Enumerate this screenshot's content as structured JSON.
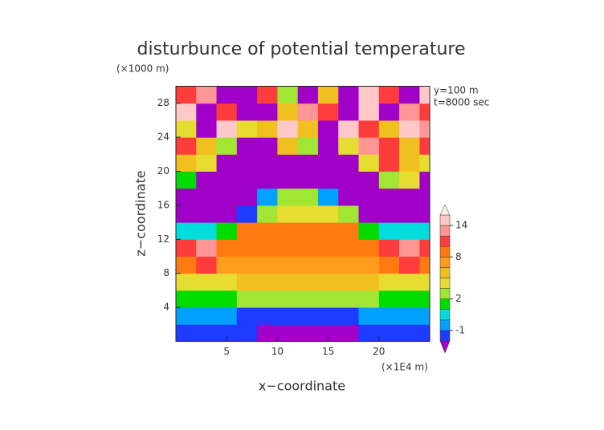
{
  "chart_data": {
    "type": "contour",
    "title": "disturbunce of potential temperature",
    "y_unit": "(×1000 m)",
    "x_unit": "(×1E4 m)",
    "xlabel": "x−coordinate",
    "ylabel": "z−coordinate",
    "annotations": [
      "y=100 m",
      "t=8000 sec"
    ],
    "xlim": [
      0,
      25
    ],
    "ylim": [
      0,
      30
    ],
    "xticks": [
      5,
      10,
      15,
      20
    ],
    "yticks": [
      4,
      8,
      12,
      16,
      20,
      24,
      28
    ],
    "x": [
      1,
      3,
      5,
      7,
      9,
      11,
      13,
      15,
      17,
      19,
      21,
      23,
      25
    ],
    "z": [
      1,
      3,
      5,
      7,
      9,
      11,
      13,
      15,
      17,
      19,
      21,
      23,
      25,
      27,
      29
    ],
    "values": [
      [
        -1.5,
        -1.5,
        -1.5,
        -1.5,
        -3,
        -3,
        -3,
        -3,
        -3,
        -1.5,
        -1.5,
        -1.5,
        -1.5
      ],
      [
        -0.5,
        -0.5,
        -0.5,
        -1.5,
        -1.5,
        -1.5,
        -1.5,
        -1.5,
        -1.5,
        -0.5,
        -0.5,
        -0.5,
        -0.5
      ],
      [
        1.5,
        1.5,
        1.5,
        2.5,
        2.5,
        2.5,
        2.5,
        2.5,
        2.5,
        2.5,
        1.5,
        1.5,
        1.5
      ],
      [
        3.5,
        3.5,
        3.5,
        5,
        5,
        5,
        5,
        5,
        5,
        5,
        3.5,
        3.5,
        3.5
      ],
      [
        9,
        11,
        7,
        7,
        7,
        7,
        7,
        7,
        7,
        7,
        9,
        11,
        9
      ],
      [
        11,
        13,
        9,
        9,
        9,
        9,
        9,
        9,
        9,
        9,
        11,
        13,
        11
      ],
      [
        0,
        0.5,
        1.5,
        9,
        9,
        9,
        9,
        9,
        9,
        1.5,
        0.5,
        0,
        0
      ],
      [
        -3,
        -3,
        -3,
        -1.5,
        2.5,
        3.5,
        3.5,
        3.5,
        2.5,
        -3,
        -3,
        -3,
        -3
      ],
      [
        -3,
        -3,
        -3,
        -3,
        -0.5,
        2.5,
        2.5,
        -0.5,
        -3,
        -3,
        -3,
        -3,
        -3
      ],
      [
        1.5,
        -3,
        -3,
        -3,
        -3,
        -3,
        -3,
        -3,
        -3,
        -3,
        2.5,
        3.5,
        -3
      ],
      [
        5,
        3.5,
        -3,
        -3,
        -3,
        -3,
        -3,
        -3,
        -3,
        3.5,
        10,
        5,
        3.5
      ],
      [
        11,
        5,
        2.5,
        -3,
        -3,
        4,
        2.5,
        -3,
        3.5,
        13,
        11,
        5,
        11
      ],
      [
        3.5,
        -3,
        15,
        3.5,
        5,
        15,
        4,
        -3,
        15,
        10,
        5,
        15,
        13
      ],
      [
        15,
        -3,
        11,
        -3,
        -3,
        5,
        13,
        10,
        -3,
        15,
        -3,
        13,
        11
      ],
      [
        11,
        13,
        -3,
        -3,
        11,
        2.5,
        -3,
        5,
        -3,
        15,
        11,
        -3,
        15
      ]
    ],
    "levels": [
      -2,
      -1,
      0,
      1,
      2,
      3,
      4,
      6,
      8,
      10,
      12,
      14,
      16
    ],
    "colors": [
      "#a000c8",
      "#1e3cff",
      "#00a0ff",
      "#00dcdc",
      "#00dc00",
      "#a0e632",
      "#e6dc32",
      "#f0c020",
      "#ff9c1e",
      "#ff7a10",
      "#ff3c3c",
      "#ff9696",
      "#ffc8c8",
      "#fff0f0"
    ],
    "colorbar_ticks": [
      -1,
      2,
      8,
      14
    ]
  }
}
